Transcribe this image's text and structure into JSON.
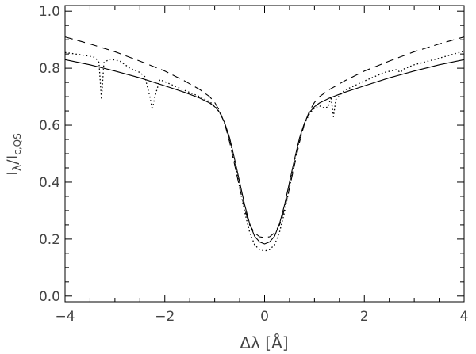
{
  "chart_data": {
    "type": "line",
    "xlabel": "Δλ [Å]",
    "ylabel": {
      "main": "I",
      "sub1": "λ",
      "sep": "/I",
      "sub2": "c,QS"
    },
    "xlim": [
      -4,
      4
    ],
    "ylim": [
      -0.02,
      1.02
    ],
    "x_ticks": [
      -4,
      -2,
      0,
      2,
      4
    ],
    "x_tick_labels": [
      "−4",
      "−2",
      "0",
      "2",
      "4"
    ],
    "y_ticks": [
      0.0,
      0.2,
      0.4,
      0.6,
      0.8,
      1.0
    ],
    "y_tick_labels": [
      "0.0",
      "0.2",
      "0.4",
      "0.6",
      "0.8",
      "1.0"
    ],
    "grid": false,
    "legend": "none",
    "series": [
      {
        "style": "solid",
        "points": [
          [
            -4.0,
            0.83
          ],
          [
            -3.5,
            0.812
          ],
          [
            -3.0,
            0.79
          ],
          [
            -2.5,
            0.766
          ],
          [
            -2.0,
            0.738
          ],
          [
            -1.6,
            0.715
          ],
          [
            -1.3,
            0.695
          ],
          [
            -1.1,
            0.678
          ],
          [
            -1.0,
            0.665
          ],
          [
            -0.9,
            0.645
          ],
          [
            -0.8,
            0.608
          ],
          [
            -0.7,
            0.555
          ],
          [
            -0.6,
            0.48
          ],
          [
            -0.5,
            0.4
          ],
          [
            -0.4,
            0.32
          ],
          [
            -0.3,
            0.255
          ],
          [
            -0.2,
            0.21
          ],
          [
            -0.1,
            0.19
          ],
          [
            0.0,
            0.183
          ],
          [
            0.1,
            0.19
          ],
          [
            0.2,
            0.21
          ],
          [
            0.3,
            0.255
          ],
          [
            0.4,
            0.32
          ],
          [
            0.5,
            0.4
          ],
          [
            0.6,
            0.48
          ],
          [
            0.7,
            0.555
          ],
          [
            0.8,
            0.608
          ],
          [
            0.9,
            0.645
          ],
          [
            1.0,
            0.665
          ],
          [
            1.1,
            0.678
          ],
          [
            1.3,
            0.695
          ],
          [
            1.6,
            0.715
          ],
          [
            2.0,
            0.738
          ],
          [
            2.5,
            0.766
          ],
          [
            3.0,
            0.79
          ],
          [
            3.5,
            0.812
          ],
          [
            4.0,
            0.83
          ]
        ]
      },
      {
        "style": "dashed",
        "points": [
          [
            -4.0,
            0.91
          ],
          [
            -3.5,
            0.885
          ],
          [
            -3.0,
            0.858
          ],
          [
            -2.5,
            0.825
          ],
          [
            -2.0,
            0.79
          ],
          [
            -1.6,
            0.755
          ],
          [
            -1.3,
            0.725
          ],
          [
            -1.1,
            0.7
          ],
          [
            -1.0,
            0.68
          ],
          [
            -0.9,
            0.65
          ],
          [
            -0.8,
            0.605
          ],
          [
            -0.7,
            0.54
          ],
          [
            -0.6,
            0.46
          ],
          [
            -0.5,
            0.38
          ],
          [
            -0.4,
            0.305
          ],
          [
            -0.3,
            0.25
          ],
          [
            -0.2,
            0.222
          ],
          [
            -0.1,
            0.208
          ],
          [
            0.0,
            0.205
          ],
          [
            0.1,
            0.208
          ],
          [
            0.2,
            0.222
          ],
          [
            0.3,
            0.25
          ],
          [
            0.4,
            0.305
          ],
          [
            0.5,
            0.38
          ],
          [
            0.6,
            0.46
          ],
          [
            0.7,
            0.54
          ],
          [
            0.8,
            0.605
          ],
          [
            0.9,
            0.65
          ],
          [
            1.0,
            0.68
          ],
          [
            1.1,
            0.7
          ],
          [
            1.3,
            0.725
          ],
          [
            1.6,
            0.755
          ],
          [
            2.0,
            0.79
          ],
          [
            2.5,
            0.825
          ],
          [
            3.0,
            0.858
          ],
          [
            3.5,
            0.885
          ],
          [
            4.0,
            0.91
          ]
        ]
      },
      {
        "style": "dotted",
        "points": [
          [
            -4.0,
            0.855
          ],
          [
            -3.6,
            0.845
          ],
          [
            -3.4,
            0.838
          ],
          [
            -3.32,
            0.82
          ],
          [
            -3.27,
            0.69
          ],
          [
            -3.22,
            0.82
          ],
          [
            -3.1,
            0.832
          ],
          [
            -2.9,
            0.825
          ],
          [
            -2.7,
            0.8
          ],
          [
            -2.5,
            0.785
          ],
          [
            -2.4,
            0.77
          ],
          [
            -2.3,
            0.7
          ],
          [
            -2.25,
            0.655
          ],
          [
            -2.2,
            0.7
          ],
          [
            -2.1,
            0.76
          ],
          [
            -1.9,
            0.745
          ],
          [
            -1.6,
            0.722
          ],
          [
            -1.3,
            0.7
          ],
          [
            -1.1,
            0.682
          ],
          [
            -1.0,
            0.668
          ],
          [
            -0.9,
            0.645
          ],
          [
            -0.8,
            0.605
          ],
          [
            -0.7,
            0.55
          ],
          [
            -0.6,
            0.47
          ],
          [
            -0.5,
            0.38
          ],
          [
            -0.4,
            0.295
          ],
          [
            -0.3,
            0.225
          ],
          [
            -0.2,
            0.18
          ],
          [
            -0.1,
            0.163
          ],
          [
            0.0,
            0.158
          ],
          [
            0.1,
            0.163
          ],
          [
            0.2,
            0.18
          ],
          [
            0.3,
            0.225
          ],
          [
            0.4,
            0.295
          ],
          [
            0.5,
            0.38
          ],
          [
            0.6,
            0.47
          ],
          [
            0.7,
            0.55
          ],
          [
            0.8,
            0.605
          ],
          [
            0.9,
            0.64
          ],
          [
            1.0,
            0.66
          ],
          [
            1.1,
            0.668
          ],
          [
            1.2,
            0.66
          ],
          [
            1.28,
            0.665
          ],
          [
            1.33,
            0.7
          ],
          [
            1.38,
            0.63
          ],
          [
            1.43,
            0.69
          ],
          [
            1.6,
            0.722
          ],
          [
            2.0,
            0.755
          ],
          [
            2.4,
            0.785
          ],
          [
            2.65,
            0.795
          ],
          [
            2.72,
            0.785
          ],
          [
            2.8,
            0.798
          ],
          [
            3.0,
            0.812
          ],
          [
            3.5,
            0.835
          ],
          [
            4.0,
            0.86
          ]
        ]
      }
    ]
  }
}
